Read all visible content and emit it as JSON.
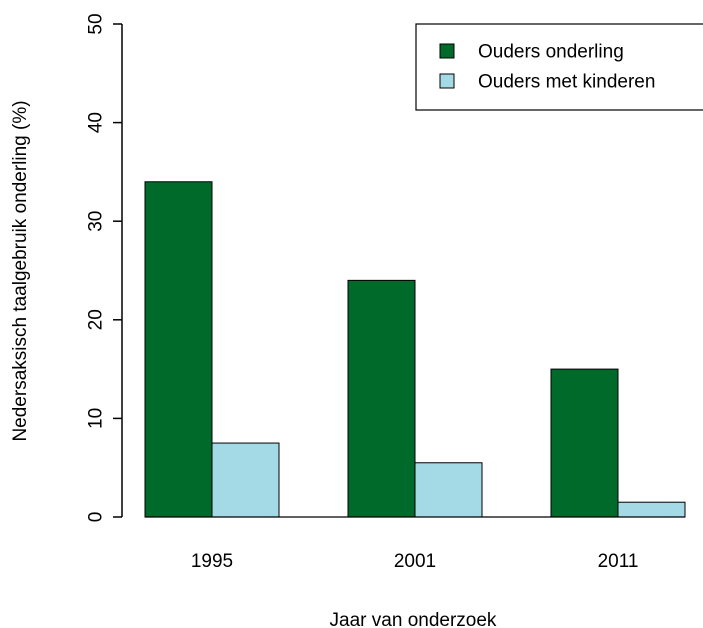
{
  "chart_data": {
    "type": "bar",
    "categories": [
      "1995",
      "2001",
      "2011"
    ],
    "series": [
      {
        "name": "Ouders onderling",
        "values": [
          34,
          24,
          15
        ],
        "color": "#006a2a"
      },
      {
        "name": "Ouders met kinderen",
        "values": [
          7.5,
          5.5,
          1.5
        ],
        "color": "#a4dae6"
      }
    ],
    "xlabel": "Jaar van onderzoek",
    "ylabel": "Nedersaksisch taalgebruik onderling (%)",
    "ylim": [
      0,
      50
    ],
    "yticks": [
      "0",
      "10",
      "20",
      "30",
      "40",
      "50"
    ],
    "grid": false,
    "legend_position": "top-right"
  }
}
